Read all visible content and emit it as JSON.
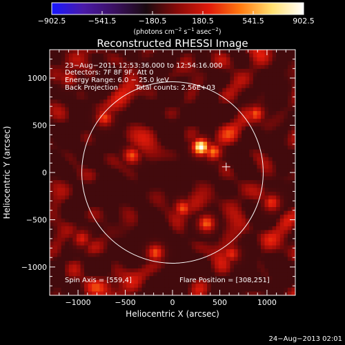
{
  "colors": {
    "background": "#000000",
    "foreground": "#ffffff",
    "colormap": [
      "#1818ff",
      "#4a1aa8",
      "#3a1060",
      "#1a0a10",
      "#8a0a08",
      "#e01a0a",
      "#ff7a10",
      "#ffe070",
      "#ffffff"
    ]
  },
  "chart_data": {
    "type": "heatmap",
    "title": "Reconstructed RHESSI Image",
    "xlabel": "Heliocentric X (arcsec)",
    "ylabel": "Heliocentric Y (arcsec)",
    "xlim": [
      -1300,
      1300
    ],
    "ylim": [
      -1300,
      1300
    ],
    "xticks": [
      -1000,
      -500,
      0,
      500,
      1000
    ],
    "xtick_labels": [
      "−1000",
      "−500",
      "0",
      "500",
      "1000"
    ],
    "yticks": [
      -1000,
      -500,
      0,
      500,
      1000
    ],
    "ytick_labels": [
      "−1000",
      "−500",
      "0",
      "500",
      "1000"
    ],
    "solar_disk": {
      "center": [
        0,
        0
      ],
      "radius_arcsec": 960
    },
    "flare_position": [
      308,
      251
    ],
    "crosshair": [
      568,
      60
    ],
    "bright_sources": [
      {
        "x": 300,
        "y": 270,
        "level": 1.0
      },
      {
        "x": 430,
        "y": 220,
        "level": 0.75
      },
      {
        "x": -430,
        "y": 180,
        "level": 0.7
      },
      {
        "x": -720,
        "y": 580,
        "level": 0.68
      },
      {
        "x": 110,
        "y": -380,
        "level": 0.7
      },
      {
        "x": 360,
        "y": -540,
        "level": 0.72
      },
      {
        "x": -180,
        "y": -850,
        "level": 0.7
      },
      {
        "x": 880,
        "y": 620,
        "level": 0.7
      },
      {
        "x": 620,
        "y": -860,
        "level": 0.65
      },
      {
        "x": -960,
        "y": -700,
        "level": 0.62
      },
      {
        "x": 1050,
        "y": -320,
        "level": 0.66
      },
      {
        "x": -1100,
        "y": 1000,
        "level": 0.6
      }
    ],
    "colorbar": {
      "ticks": [
        -902.5,
        -541.5,
        -180.5,
        180.5,
        541.5,
        902.5
      ],
      "tick_labels": [
        "−902.5",
        "−541.5",
        "−180.5",
        "180.5",
        "541.5",
        "902.5"
      ],
      "range": [
        -902.5,
        902.5
      ]
    }
  },
  "colorbar_unit": {
    "main": "(photons cm",
    "sup1": "−2",
    "mid1": " s",
    "sup2": "−1",
    "mid2": " asec",
    "sup3": "−2",
    "end": ")"
  },
  "annotations": {
    "time_range": "23−Aug−2011 12:53:36.000 to 12:54:16.000",
    "detectors": "Detectors: 7F 8F 9F, Att 0",
    "energy_range": "Energy Range: 6.0 − 25.0 keV",
    "method": "Back Projection",
    "total_counts": "Total counts: 2.56E+03",
    "spin_axis": "Spin Axis = [559,4]",
    "flare_position": "Flare Position = [308,251]"
  },
  "footer": {
    "date": "24−Aug−2013 02:01"
  }
}
